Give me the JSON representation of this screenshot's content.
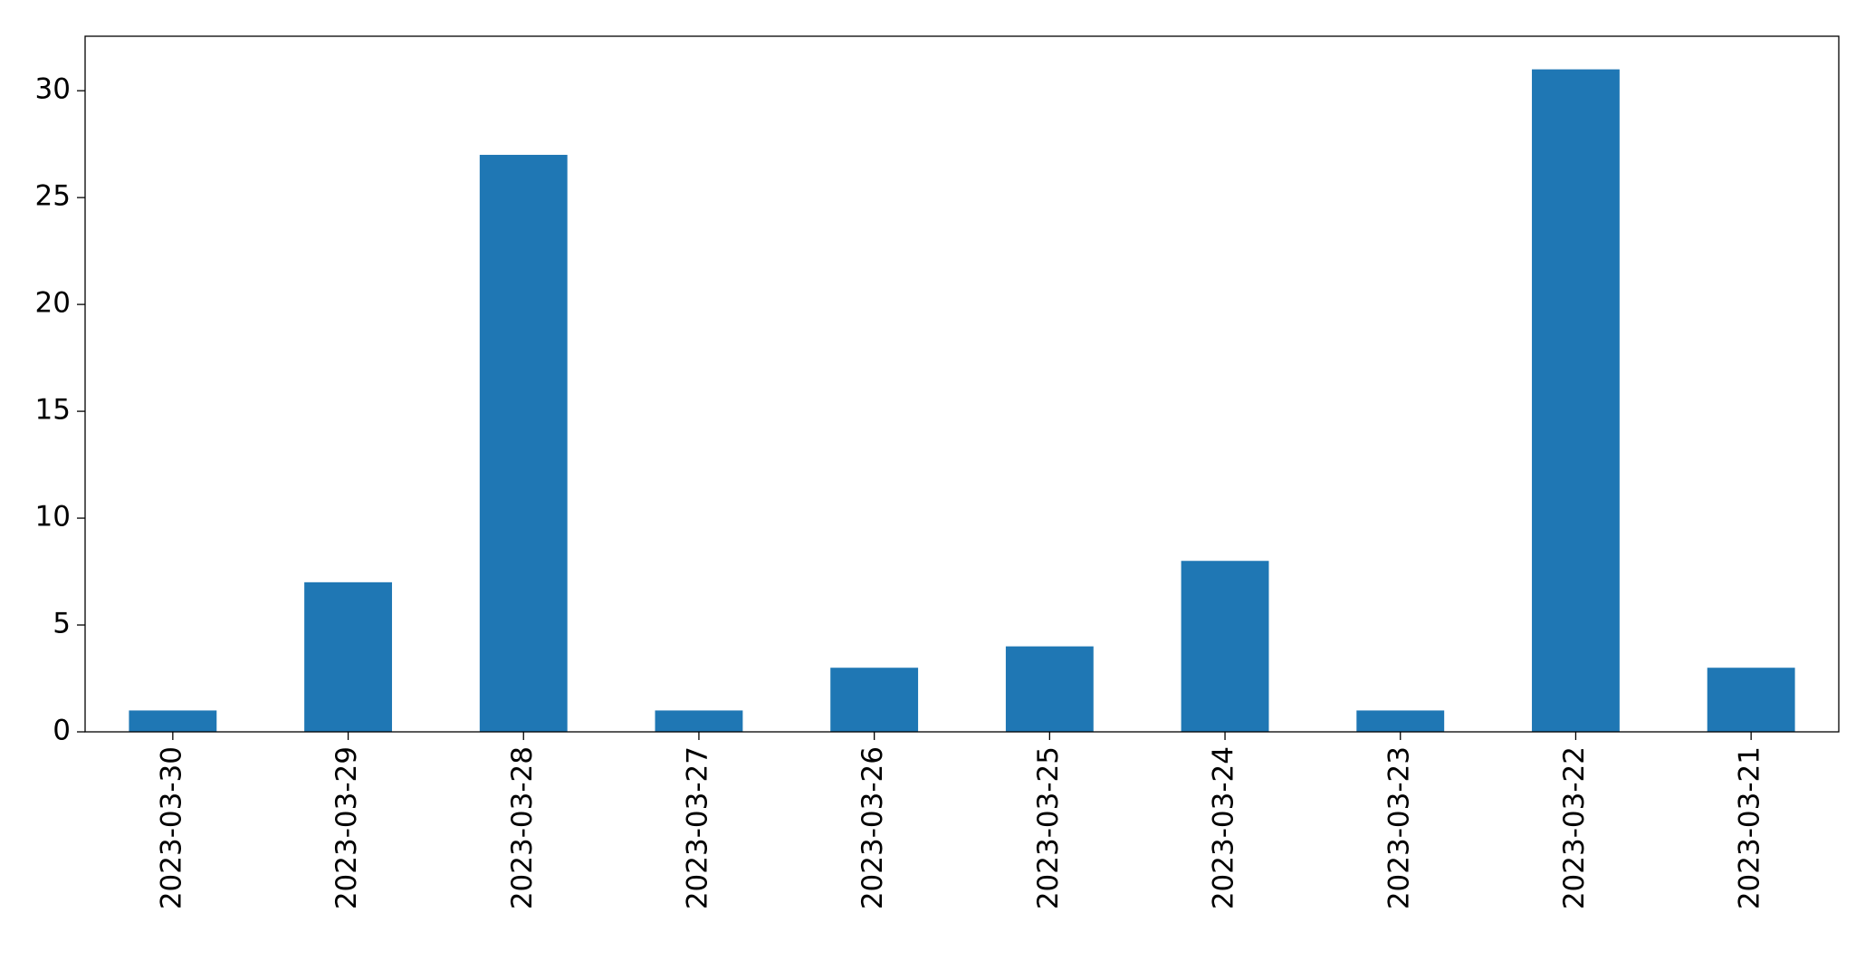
{
  "chart_data": {
    "type": "bar",
    "categories": [
      "2023-03-30",
      "2023-03-29",
      "2023-03-28",
      "2023-03-27",
      "2023-03-26",
      "2023-03-25",
      "2023-03-24",
      "2023-03-23",
      "2023-03-22",
      "2023-03-21"
    ],
    "values": [
      1,
      7,
      27,
      1,
      3,
      4,
      8,
      1,
      31,
      3
    ],
    "color": "#1f77b4",
    "ylim": [
      0,
      32.55
    ],
    "yticks": [
      0,
      5,
      10,
      15,
      20,
      25,
      30
    ],
    "grid": false
  }
}
